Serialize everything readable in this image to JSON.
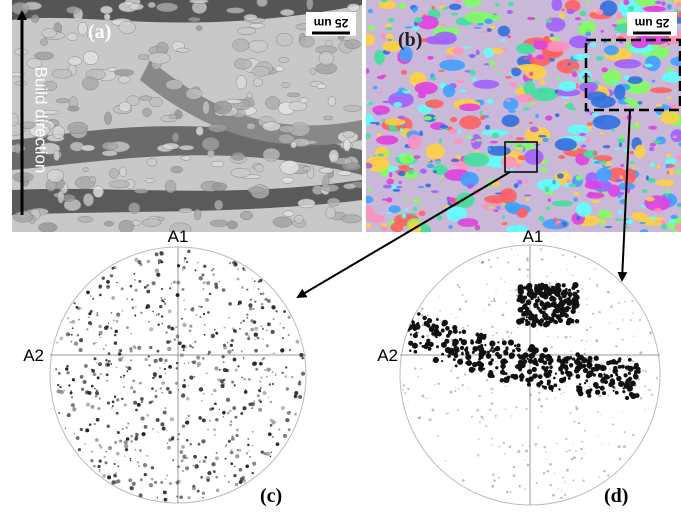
{
  "panels": [
    {
      "label": "(a)",
      "scale_bar": "25 um",
      "annotation": "Build direction"
    },
    {
      "label": "(b)",
      "scale_bar": "25 um"
    },
    {
      "label": "(c)",
      "axes": [
        "A1",
        "A2"
      ]
    },
    {
      "label": "(d)",
      "axes": [
        "A1",
        "A2"
      ]
    }
  ]
}
